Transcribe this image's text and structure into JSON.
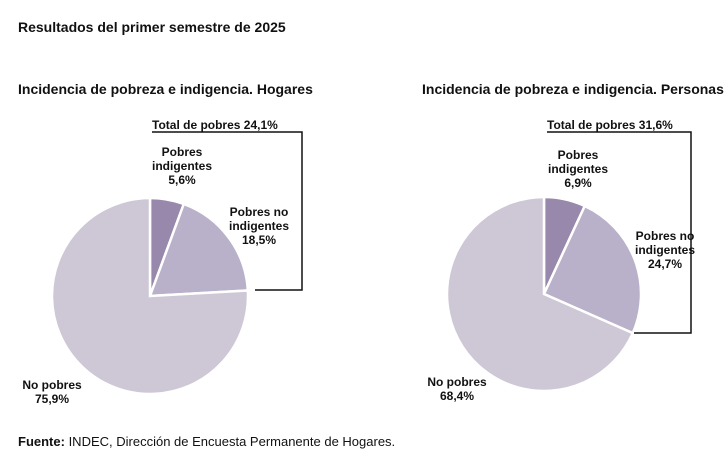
{
  "heading": "Resultados del primer semestre de 2025",
  "footer": {
    "label": "Fuente:",
    "text": " INDEC, Dirección de Encuesta Permanente de Hogares."
  },
  "colors": {
    "indigentes": "#9888ab",
    "no_indigentes": "#b9b1c9",
    "no_pobres": "#cec7d6",
    "bracket": "#111111"
  },
  "chart_data": [
    {
      "type": "pie",
      "title": "Incidencia de pobreza e indigencia. Hogares",
      "total_label": "Total de pobres 24,1%",
      "slices": [
        {
          "label": [
            "Pobres",
            "indigentes",
            "5,6%"
          ],
          "value": 5.6,
          "color_key": "indigentes"
        },
        {
          "label": [
            "Pobres no",
            "indigentes",
            "18,5%"
          ],
          "value": 18.5,
          "color_key": "no_indigentes"
        },
        {
          "label": [
            "No pobres",
            "75,9%"
          ],
          "value": 75.9,
          "color_key": "no_pobres"
        }
      ]
    },
    {
      "type": "pie",
      "title": "Incidencia de pobreza e indigencia. Personas",
      "total_label": "Total de pobres 31,6%",
      "slices": [
        {
          "label": [
            "Pobres",
            "indigentes",
            "6,9%"
          ],
          "value": 6.9,
          "color_key": "indigentes"
        },
        {
          "label": [
            "Pobres no",
            "indigentes",
            "24,7%"
          ],
          "value": 24.7,
          "color_key": "no_indigentes"
        },
        {
          "label": [
            "No pobres",
            "68,4%"
          ],
          "value": 68.4,
          "color_key": "no_pobres"
        }
      ]
    }
  ]
}
